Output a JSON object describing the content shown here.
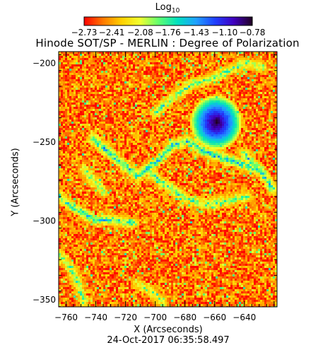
{
  "chart_data": {
    "type": "heatmap",
    "title": "Hinode SOT/SP - MERLIN : Degree of Polarization",
    "subtitle": "24-Oct-2017 06:35:58.497",
    "xlabel": "X (Arcseconds)",
    "ylabel": "Y (Arcseconds)",
    "xlim": [
      -765,
      -618
    ],
    "ylim": [
      -355,
      -193
    ],
    "x_ticks": [
      "-760",
      "-740",
      "-720",
      "-700",
      "-680",
      "-660",
      "-640"
    ],
    "x_tick_values": [
      -760,
      -740,
      -720,
      -700,
      -680,
      -660,
      -640
    ],
    "y_ticks": [
      "-200",
      "-250",
      "-300",
      "-350"
    ],
    "y_tick_values": [
      -200,
      -250,
      -300,
      -350
    ],
    "colorbar": {
      "label": "Log",
      "label_subscript": "10",
      "range": [
        -2.73,
        -0.78
      ],
      "ticks": [
        "-2.73",
        "-2.41",
        "-2.08",
        "-1.76",
        "-1.43",
        "-1.10",
        "-0.78"
      ],
      "tick_values": [
        -2.73,
        -2.41,
        -2.08,
        -1.76,
        -1.43,
        -1.1,
        -0.78
      ],
      "colors": [
        "#ff0000",
        "#ff7800",
        "#ffd000",
        "#f0ff30",
        "#60ff70",
        "#00e0c0",
        "#20a0ff",
        "#2040ff",
        "#4000c0",
        "#200020"
      ]
    },
    "features": [
      {
        "kind": "spot",
        "x": -659,
        "y": -238,
        "radius": 8,
        "value": -0.78
      },
      {
        "kind": "network",
        "points": [
          [
            -742,
            -248
          ],
          [
            -725,
            -262
          ],
          [
            -712,
            -272
          ],
          [
            -698,
            -262
          ],
          [
            -688,
            -252
          ],
          [
            -678,
            -250
          ],
          [
            -668,
            -256
          ],
          [
            -650,
            -262
          ],
          [
            -630,
            -268
          ]
        ],
        "value": -1.6
      },
      {
        "kind": "network",
        "points": [
          [
            -705,
            -268
          ],
          [
            -693,
            -278
          ],
          [
            -680,
            -286
          ],
          [
            -668,
            -290
          ],
          [
            -652,
            -288
          ],
          [
            -638,
            -285
          ]
        ],
        "value": -1.8
      },
      {
        "kind": "network",
        "points": [
          [
            -700,
            -232
          ],
          [
            -688,
            -222
          ],
          [
            -676,
            -214
          ],
          [
            -662,
            -210
          ],
          [
            -650,
            -205
          ],
          [
            -640,
            -200
          ],
          [
            -628,
            -203
          ]
        ],
        "value": -1.85
      },
      {
        "kind": "network",
        "points": [
          [
            -765,
            -285
          ],
          [
            -752,
            -294
          ],
          [
            -740,
            -300
          ],
          [
            -728,
            -300
          ],
          [
            -715,
            -302
          ]
        ],
        "value": -1.7
      },
      {
        "kind": "network",
        "points": [
          [
            -765,
            -322
          ],
          [
            -757,
            -330
          ],
          [
            -752,
            -340
          ],
          [
            -748,
            -352
          ]
        ],
        "value": -1.85
      },
      {
        "kind": "network",
        "points": [
          [
            -640,
            -258
          ],
          [
            -628,
            -270
          ],
          [
            -621,
            -280
          ]
        ],
        "value": -1.65
      },
      {
        "kind": "network",
        "points": [
          [
            -748,
            -268
          ],
          [
            -742,
            -274
          ],
          [
            -735,
            -282
          ]
        ],
        "value": -1.9
      },
      {
        "kind": "network",
        "points": [
          [
            -712,
            -340
          ],
          [
            -702,
            -346
          ],
          [
            -695,
            -353
          ]
        ],
        "value": -1.95
      }
    ],
    "background_value": -2.5,
    "grid": false
  }
}
